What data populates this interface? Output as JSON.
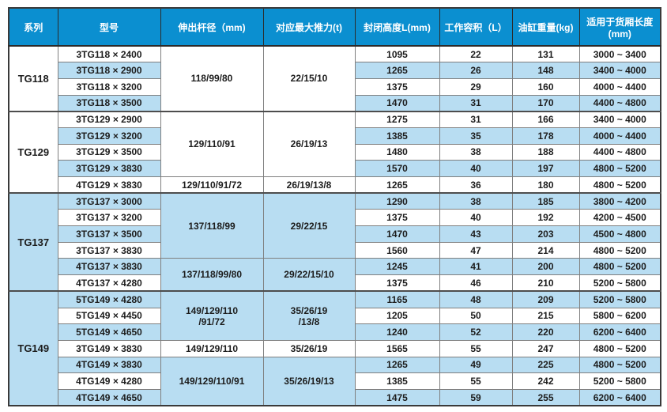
{
  "table": {
    "colors": {
      "header_bg": "#0b8fd0",
      "header_text": "#ffffff",
      "row_bg": "#ffffff",
      "row_alt_bg": "#b8ddf2",
      "grid_border": "#7f7f7f",
      "outer_border": "#3a3a3a",
      "text": "#1c1c1c"
    },
    "columns": [
      "系列",
      "型号",
      "伸出杆径（mm)",
      "对应最大推力(t)",
      "封闭高度L(mm)",
      "工作容积（L）",
      "油缸重量(kg)",
      "适用于货厢长度\n(mm)"
    ],
    "groups": [
      {
        "series": "TG118",
        "merges": [
          {
            "from": 0,
            "span": 4,
            "rod": "118/99/80",
            "thrust": "22/15/10"
          }
        ],
        "rows": [
          {
            "model": "3TG118 × 2400",
            "height": "1095",
            "volume": "22",
            "weight": "131",
            "box": "3000 ~ 3400"
          },
          {
            "model": "3TG118 × 2900",
            "height": "1265",
            "volume": "26",
            "weight": "148",
            "box": "3400 ~ 4000"
          },
          {
            "model": "3TG118 × 3200",
            "height": "1375",
            "volume": "29",
            "weight": "160",
            "box": "4000 ~ 4400"
          },
          {
            "model": "3TG118 × 3500",
            "height": "1470",
            "volume": "31",
            "weight": "170",
            "box": "4400 ~ 4800"
          }
        ]
      },
      {
        "series": "TG129",
        "merges": [
          {
            "from": 0,
            "span": 4,
            "rod": "129/110/91",
            "thrust": "26/19/13"
          },
          {
            "from": 4,
            "span": 1,
            "rod": "129/110/91/72",
            "thrust": "26/19/13/8"
          }
        ],
        "rows": [
          {
            "model": "3TG129 × 2900",
            "height": "1275",
            "volume": "31",
            "weight": "166",
            "box": "3400 ~ 4000"
          },
          {
            "model": "3TG129 × 3200",
            "height": "1385",
            "volume": "35",
            "weight": "178",
            "box": "4000 ~ 4400"
          },
          {
            "model": "3TG129 × 3500",
            "height": "1480",
            "volume": "38",
            "weight": "188",
            "box": "4400 ~ 4800"
          },
          {
            "model": "3TG129 × 3830",
            "height": "1570",
            "volume": "40",
            "weight": "197",
            "box": "4800 ~ 5200"
          },
          {
            "model": "4TG129 × 3830",
            "height": "1265",
            "volume": "36",
            "weight": "180",
            "box": "4800 ~ 5200"
          }
        ]
      },
      {
        "series": "TG137",
        "merges": [
          {
            "from": 0,
            "span": 4,
            "rod": "137/118/99",
            "thrust": "29/22/15"
          },
          {
            "from": 4,
            "span": 2,
            "rod": "137/118/99/80",
            "thrust": "29/22/15/10"
          }
        ],
        "rows": [
          {
            "model": "3TG137 × 3000",
            "height": "1290",
            "volume": "38",
            "weight": "185",
            "box": "3800 ~ 4200"
          },
          {
            "model": "3TG137 × 3200",
            "height": "1375",
            "volume": "40",
            "weight": "192",
            "box": "4200 ~ 4500"
          },
          {
            "model": "3TG137 × 3500",
            "height": "1470",
            "volume": "43",
            "weight": "203",
            "box": "4500 ~ 4800"
          },
          {
            "model": "3TG137 × 3830",
            "height": "1560",
            "volume": "47",
            "weight": "214",
            "box": "4800 ~ 5200"
          },
          {
            "model": "4TG137 × 3830",
            "height": "1245",
            "volume": "41",
            "weight": "200",
            "box": "4800 ~ 5200"
          },
          {
            "model": "4TG137 × 4280",
            "height": "1375",
            "volume": "46",
            "weight": "210",
            "box": "5200 ~ 5800"
          }
        ]
      },
      {
        "series": "TG149",
        "merges": [
          {
            "from": 0,
            "span": 3,
            "rod": "149/129/110\n/91/72",
            "thrust": "35/26/19\n/13/8"
          },
          {
            "from": 3,
            "span": 1,
            "rod": "149/129/110",
            "thrust": "35/26/19"
          },
          {
            "from": 4,
            "span": 3,
            "rod": "149/129/110/91",
            "thrust": "35/26/19/13"
          }
        ],
        "rows": [
          {
            "model": "5TG149 × 4280",
            "height": "1165",
            "volume": "48",
            "weight": "209",
            "box": "5200 ~ 5800"
          },
          {
            "model": "5TG149 × 4450",
            "height": "1205",
            "volume": "50",
            "weight": "215",
            "box": "5800 ~ 6200"
          },
          {
            "model": "5TG149 × 4650",
            "height": "1240",
            "volume": "52",
            "weight": "220",
            "box": "6200 ~ 6400"
          },
          {
            "model": "3TG149 × 3830",
            "height": "1565",
            "volume": "55",
            "weight": "247",
            "box": "4800 ~ 5200"
          },
          {
            "model": "4TG149 × 3830",
            "height": "1265",
            "volume": "49",
            "weight": "225",
            "box": "4800 ~ 5200"
          },
          {
            "model": "4TG149 × 4280",
            "height": "1385",
            "volume": "55",
            "weight": "242",
            "box": "5200 ~ 5800"
          },
          {
            "model": "4TG149 × 4650",
            "height": "1475",
            "volume": "59",
            "weight": "255",
            "box": "6200 ~ 6400"
          }
        ]
      }
    ]
  }
}
